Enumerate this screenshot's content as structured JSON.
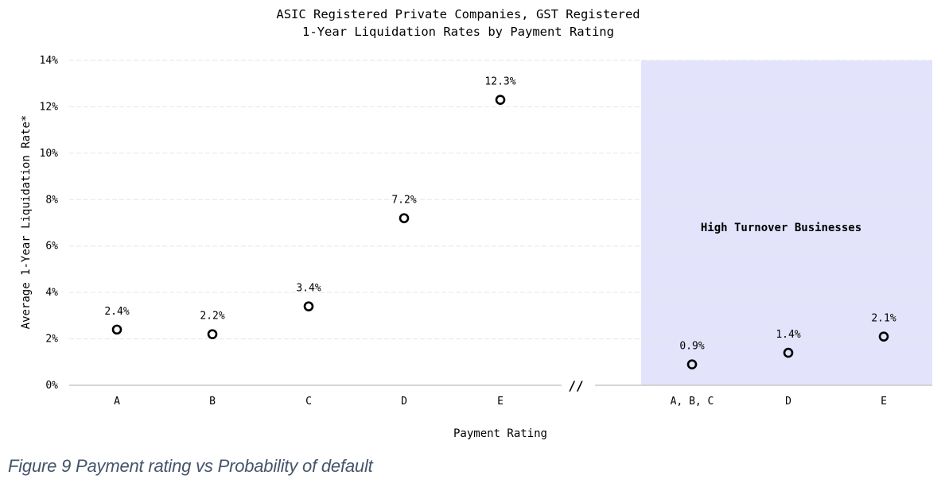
{
  "chart_data": {
    "type": "scatter",
    "title_lines": [
      "ASIC Registered Private Companies, GST Registered",
      "1-Year Liquidation Rates by Payment Rating"
    ],
    "xlabel": "Payment Rating",
    "ylabel": "Average 1-Year Liquidation Rate*",
    "ylim": [
      0,
      14
    ],
    "yticks": [
      "0%",
      "2%",
      "4%",
      "6%",
      "8%",
      "10%",
      "12%",
      "14%"
    ],
    "grid": true,
    "break_marker": "//",
    "groups": [
      {
        "name": "",
        "highlighted": false,
        "categories": [
          "A",
          "B",
          "C",
          "D",
          "E"
        ],
        "values": [
          2.4,
          2.2,
          3.4,
          7.2,
          12.3
        ],
        "labels": [
          "2.4%",
          "2.2%",
          "3.4%",
          "7.2%",
          "12.3%"
        ]
      },
      {
        "name": "High Turnover Businesses",
        "highlighted": true,
        "categories": [
          "A, B, C",
          "D",
          "E"
        ],
        "values": [
          0.9,
          1.4,
          2.1
        ],
        "labels": [
          "0.9%",
          "1.4%",
          "2.1%"
        ]
      }
    ]
  },
  "colors": {
    "highlight_region": "#e3e3fb",
    "marker": "#000000",
    "grid": "#e6e6e6",
    "caption": "#44546a"
  },
  "caption": "Figure 9 Payment rating vs Probability of default"
}
